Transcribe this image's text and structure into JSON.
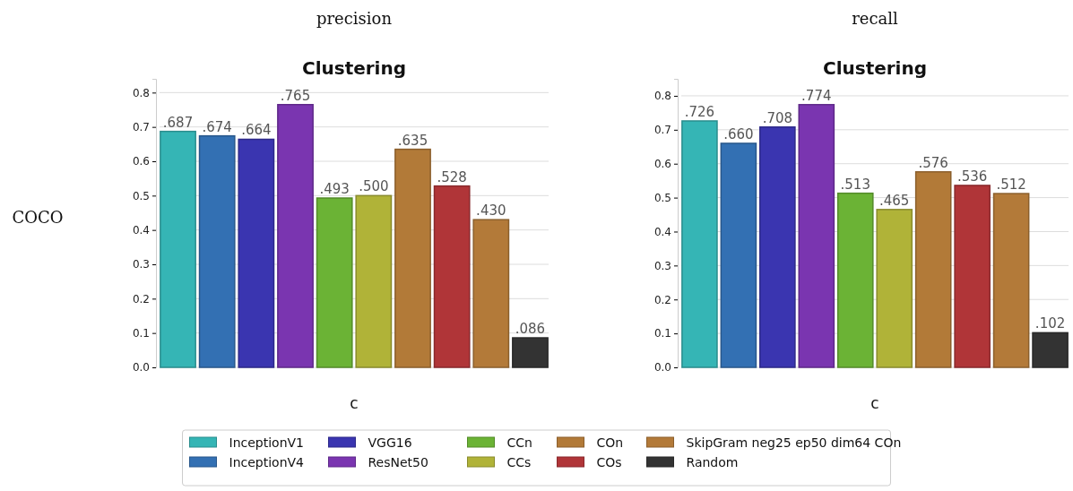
{
  "chart_data": [
    {
      "type": "bar",
      "subtitle": "precision",
      "title": "Clustering",
      "ylabel": "COCO",
      "categories": [
        "c"
      ],
      "ylim": [
        0,
        0.84
      ],
      "yticks": [
        {
          "value": 0,
          "label": "0.0"
        },
        0.1,
        0.2,
        0.3,
        0.4,
        0.5,
        0.6,
        0.7,
        0.8
      ],
      "grid": "y",
      "legend": "bottom",
      "series": [
        {
          "name": "InceptionV1",
          "color": "#35b5b5",
          "values": [
            0.687
          ],
          "value_labels": [
            ".687"
          ]
        },
        {
          "name": "InceptionV4",
          "color": "#3370b3",
          "values": [
            0.674
          ],
          "value_labels": [
            ".674"
          ]
        },
        {
          "name": "VGG16",
          "color": "#3a35b0",
          "values": [
            0.664
          ],
          "value_labels": [
            ".664"
          ]
        },
        {
          "name": "ResNet50",
          "color": "#7a35b0",
          "values": [
            0.765
          ],
          "value_labels": [
            ".765"
          ]
        },
        {
          "name": "CCn",
          "color": "#6bb335",
          "values": [
            0.493
          ],
          "value_labels": [
            ".493"
          ]
        },
        {
          "name": "CCs",
          "color": "#b0b338",
          "values": [
            0.5
          ],
          "value_labels": [
            ".500"
          ]
        },
        {
          "name": "COn",
          "color": "#b27a38",
          "values": [
            0.635
          ],
          "value_labels": [
            ".635"
          ]
        },
        {
          "name": "COs",
          "color": "#b03538",
          "values": [
            0.528
          ],
          "value_labels": [
            ".528"
          ]
        },
        {
          "name": "SkipGram neg25 ep50 dim64 COn",
          "color": "#b37a39",
          "values": [
            0.43
          ],
          "value_labels": [
            ".430"
          ]
        },
        {
          "name": "Random",
          "color": "#333333",
          "values": [
            0.086
          ],
          "value_labels": [
            ".086"
          ]
        }
      ]
    },
    {
      "type": "bar",
      "subtitle": "recall",
      "title": "Clustering",
      "categories": [
        "c"
      ],
      "ylim": [
        0,
        0.85
      ],
      "yticks": [
        {
          "value": 0,
          "label": "0.0"
        },
        0.1,
        0.2,
        0.3,
        0.4,
        0.5,
        0.6,
        0.7,
        0.8
      ],
      "grid": "y",
      "series": [
        {
          "color": "#35b5b5",
          "values": [
            0.726
          ],
          "value_labels": [
            ".726"
          ]
        },
        {
          "color": "#3370b3",
          "values": [
            0.66
          ],
          "value_labels": [
            ".660"
          ]
        },
        {
          "color": "#3a35b0",
          "values": [
            0.708
          ],
          "value_labels": [
            ".708"
          ]
        },
        {
          "color": "#7a35b0",
          "values": [
            0.774
          ],
          "value_labels": [
            ".774"
          ]
        },
        {
          "color": "#6bb335",
          "values": [
            0.513
          ],
          "value_labels": [
            ".513"
          ]
        },
        {
          "color": "#b0b338",
          "values": [
            0.465
          ],
          "value_labels": [
            ".465"
          ]
        },
        {
          "color": "#b27a38",
          "values": [
            0.576
          ],
          "value_labels": [
            ".576"
          ]
        },
        {
          "color": "#b03538",
          "values": [
            0.536
          ],
          "value_labels": [
            ".536"
          ]
        },
        {
          "color": "#b37a39",
          "values": [
            0.512
          ],
          "value_labels": [
            ".512"
          ]
        },
        {
          "color": "#333333",
          "values": [
            0.102
          ],
          "value_labels": [
            ".102"
          ]
        }
      ]
    }
  ]
}
